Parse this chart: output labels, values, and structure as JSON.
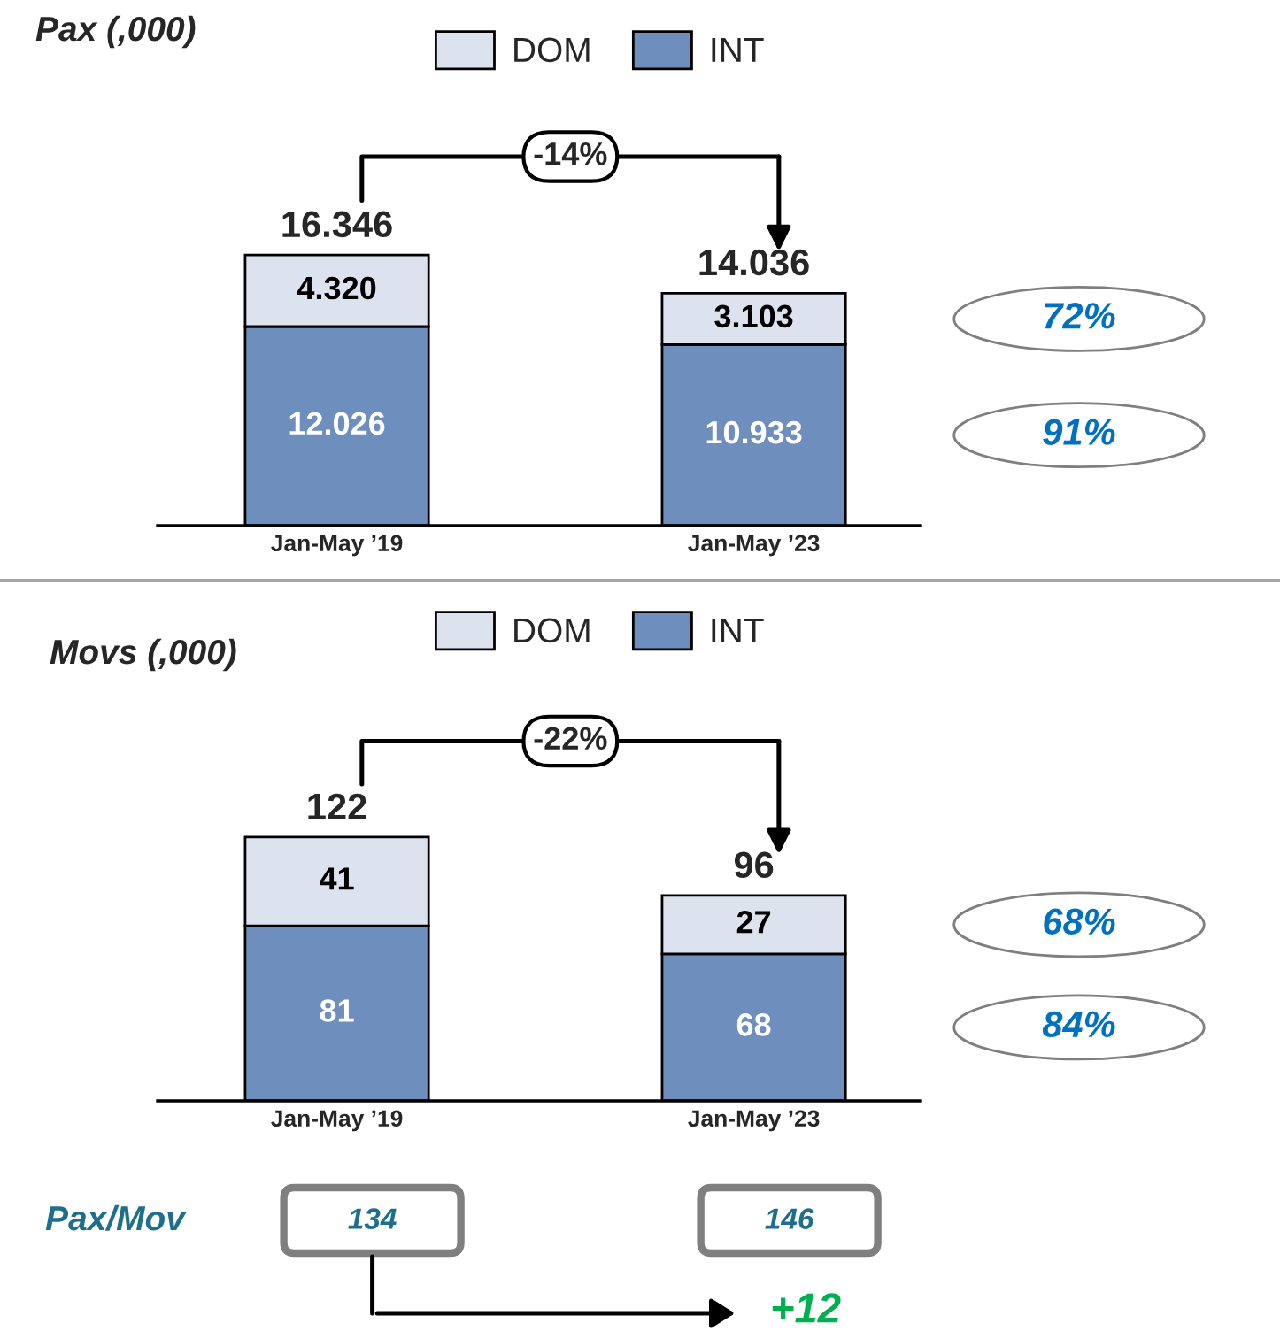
{
  "chart_data": [
    {
      "type": "bar",
      "title": "Pax (,000)",
      "categories": [
        "Jan-May ’19",
        "Jan-May ’23"
      ],
      "stacked": true,
      "legend": "top",
      "tick_labels": "x",
      "series": [
        {
          "name": "INT",
          "color": "#6e8ebd",
          "values": [
            12026,
            10933
          ],
          "value_labels": [
            "12.026",
            "10.933"
          ]
        },
        {
          "name": "DOM",
          "color": "#dce3ef",
          "values": [
            4320,
            3103
          ],
          "value_labels": [
            "4.320",
            "3.103"
          ]
        }
      ],
      "totals": [
        "16.346",
        "14.036"
      ],
      "annotations": [
        "-14%",
        "72%",
        "91%"
      ]
    },
    {
      "type": "bar",
      "title": "Movs (,000)",
      "categories": [
        "Jan-May ’19",
        "Jan-May ’23"
      ],
      "stacked": true,
      "legend": "top",
      "tick_labels": "x",
      "series": [
        {
          "name": "INT",
          "color": "#6e8ebd",
          "values": [
            81,
            68
          ],
          "value_labels": [
            "81",
            "68"
          ]
        },
        {
          "name": "DOM",
          "color": "#dce3ef",
          "values": [
            41,
            27
          ],
          "value_labels": [
            "41",
            "27"
          ]
        }
      ],
      "totals": [
        "122",
        "96"
      ],
      "annotations": [
        "-22%",
        "68%",
        "84%",
        "Pax/Mov",
        "134",
        "146",
        "+12"
      ]
    }
  ]
}
